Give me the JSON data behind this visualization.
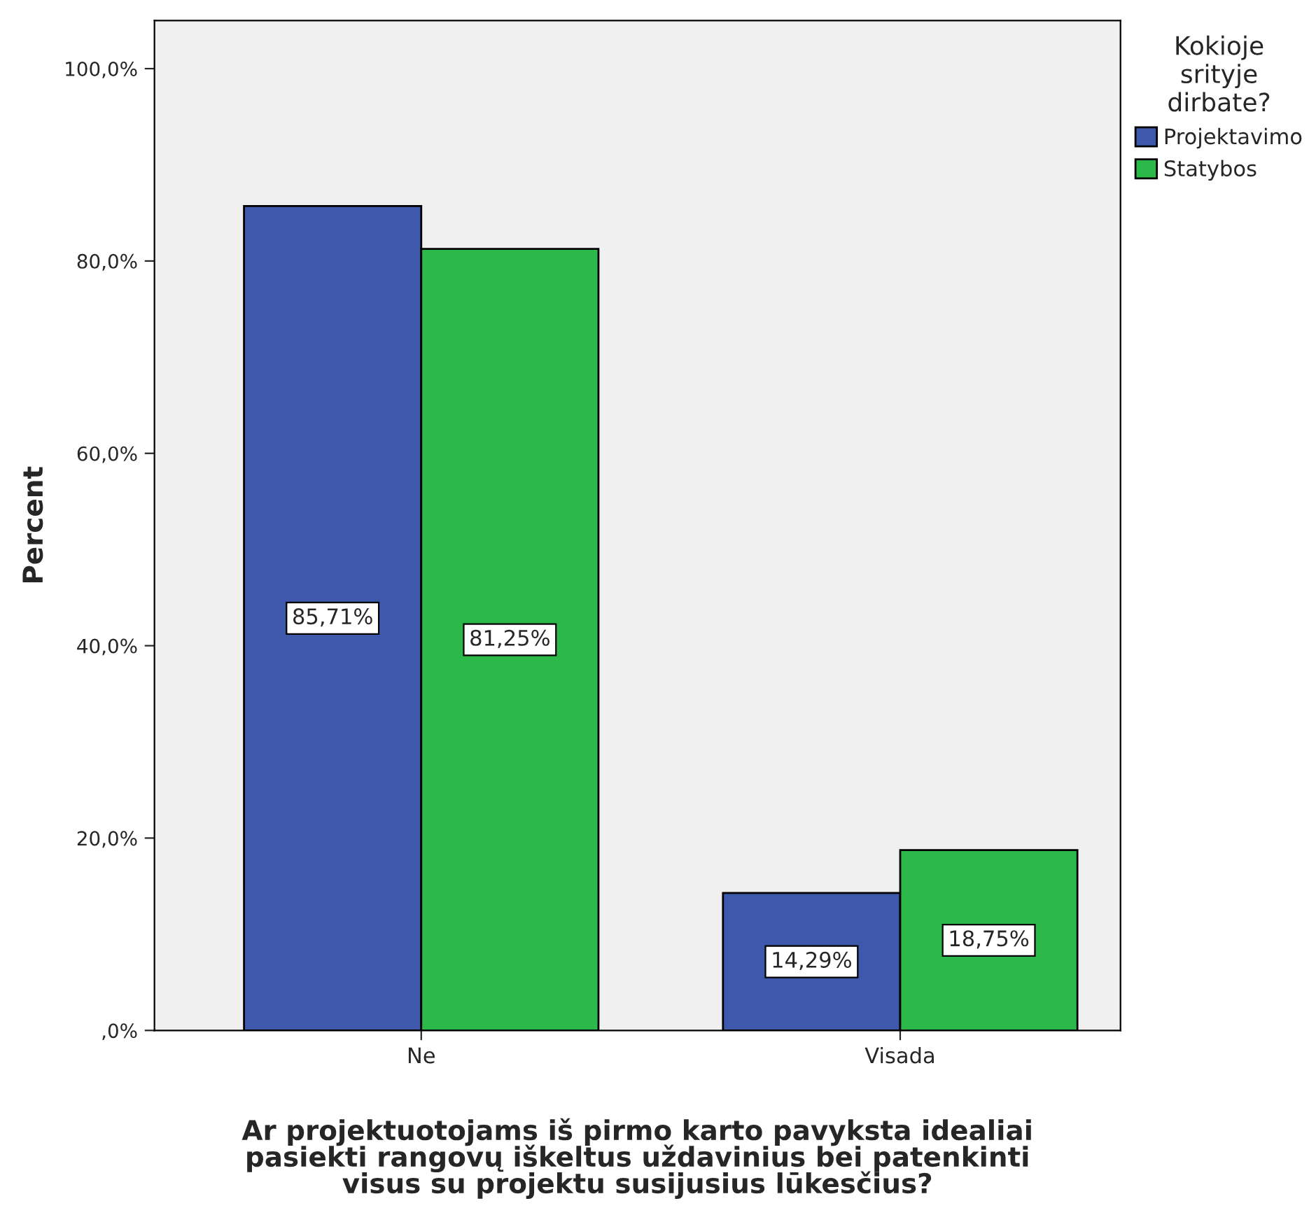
{
  "chart_data": {
    "type": "bar",
    "xlabel": "Ar projektuotojams iš pirmo karto pavyksta idealiai\npasiekti rangovų iškeltus uždavinius bei patenkinti\nvisus su projektu susijusius lūkesčius?",
    "ylabel": "Percent",
    "legend_title": "Kokioje\nsrityje\ndirbate?",
    "categories": [
      "Ne",
      "Visada"
    ],
    "series": [
      {
        "name": "Projektavimo",
        "color": "#3e58ac",
        "values": [
          85.71,
          14.29
        ],
        "value_labels": [
          "85,71%",
          "14,29%"
        ]
      },
      {
        "name": "Statybos",
        "color": "#2db84a",
        "values": [
          81.25,
          18.75
        ],
        "value_labels": [
          "81,25%",
          "18,75%"
        ]
      }
    ],
    "ylim": [
      0,
      105
    ],
    "yticks": [
      {
        "value": 0,
        "label": ",0%"
      },
      {
        "value": 20,
        "label": "20,0%"
      },
      {
        "value": 40,
        "label": "40,0%"
      },
      {
        "value": 60,
        "label": "60,0%"
      },
      {
        "value": 80,
        "label": "80,0%"
      },
      {
        "value": 100,
        "label": "100,0%"
      }
    ],
    "legend": "top right",
    "grid": false
  }
}
